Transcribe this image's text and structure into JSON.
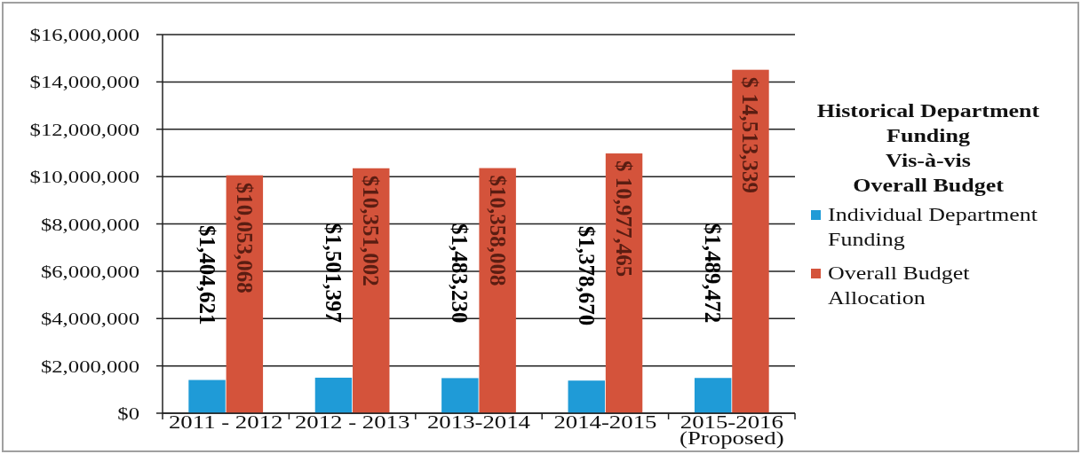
{
  "chart_data": {
    "type": "bar",
    "title": "Historical Department\nFunding\nVis-à-vis\nOverall Budget",
    "categories": [
      "2011 - 2012",
      "2012 - 2013",
      "2013-2014",
      "2014-2015",
      "2015-2016\n(Proposed)"
    ],
    "series": [
      {
        "name": "Individual Department Funding",
        "color": "#1f9bd7",
        "values": [
          1404621,
          1501397,
          1483230,
          1378670,
          1489472
        ],
        "value_labels": [
          "$1,404,621",
          "$1,501,397",
          "$1,483,230",
          "$1,378,670",
          "$1,489,472"
        ]
      },
      {
        "name": "Overall Budget Allocation",
        "color": "#d4533b",
        "values": [
          10053068,
          10351002,
          10358008,
          10977465,
          14513339
        ],
        "value_labels": [
          "$10,053,068",
          "$10,351,002",
          "$10,358,008",
          "$ 10,977,465",
          "$ 14,513,339"
        ]
      }
    ],
    "ylim": [
      0,
      16000000
    ],
    "yticks": [
      {
        "value": 0,
        "label": "$0"
      },
      {
        "value": 2000000,
        "label": "$2,000,000"
      },
      {
        "value": 4000000,
        "label": "$4,000,000"
      },
      {
        "value": 6000000,
        "label": "$6,000,000"
      },
      {
        "value": 8000000,
        "label": "$8,000,000"
      },
      {
        "value": 10000000,
        "label": "$10,000,000"
      },
      {
        "value": 12000000,
        "label": "$12,000,000"
      },
      {
        "value": 14000000,
        "label": "$14,000,000"
      },
      {
        "value": 16000000,
        "label": "$16,000,000"
      }
    ],
    "grid": "y",
    "legend": "right"
  }
}
